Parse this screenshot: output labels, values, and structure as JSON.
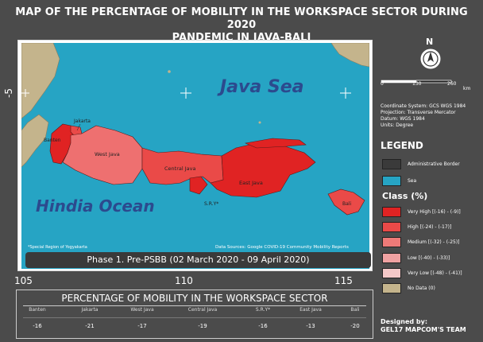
{
  "title_line1": "MAP OF THE PERCENTAGE OF MOBILITY IN THE WORKSPACE SECTOR DURING 2020",
  "title_line2": "PANDEMIC IN JAVA-BALI",
  "axis": {
    "lat_label": "-5",
    "lon_labels": [
      "105",
      "110",
      "115"
    ]
  },
  "map": {
    "sea_labels": [
      "Java Sea",
      "Hindia Ocean"
    ],
    "region_labels": [
      "Jakarta",
      "Banten",
      "West Java",
      "Central Java",
      "East Java",
      "S.R.Y*",
      "Bali"
    ],
    "footnote": "*Special Region of Yogyakarta",
    "source": "Data Sources: Google COVID-19 Community Mobility Reports",
    "colors": {
      "sea": "#26a4c4",
      "land_no_data": "#c4b48c",
      "very_high": "#e02323",
      "high": "#ea4a48",
      "medium": "#ee7070"
    }
  },
  "phase": "Phase 1. Pre-PSBB (02 March 2020 - 09 April 2020)",
  "north_label": "N",
  "scale": {
    "ticks": [
      "0",
      "130",
      "260"
    ],
    "unit": "km"
  },
  "coordinate_info": [
    "Coordinate System: GCS WGS 1984",
    "Projection: Transverse Mercator",
    "Datum: WGS 1984",
    "Units: Degree"
  ],
  "legend": {
    "title": "LEGEND",
    "base_items": [
      {
        "label": "Administrative Border",
        "color": "#3a3a3a"
      },
      {
        "label": "Sea",
        "color": "#26a4c4"
      }
    ],
    "class_title": "Class (%)",
    "class_items": [
      {
        "label": "Very High [(-16) - (-9)]",
        "color": "#e02323"
      },
      {
        "label": "High [(-24) - (-17)]",
        "color": "#ea4a48"
      },
      {
        "label": "Medium [(-32) - (-25)]",
        "color": "#ee7a78"
      },
      {
        "label": "Low [(-40) - (-33)]",
        "color": "#f0a2a2"
      },
      {
        "label": "Very Low [(-48) - (-41)]",
        "color": "#f4c8c8"
      },
      {
        "label": "No Data (0)",
        "color": "#c4b48c"
      }
    ]
  },
  "table": {
    "title": "PERCENTAGE OF MOBILITY IN THE WORKSPACE SECTOR",
    "headers": [
      "Banten",
      "Jakarta",
      "West Java",
      "Central Java",
      "S.R.Y*",
      "East Java",
      "Bali"
    ],
    "values": [
      "-16",
      "-21",
      "-17",
      "-19",
      "-16",
      "-13",
      "-20"
    ]
  },
  "credits": [
    "Designed by:",
    "GEL17 MAPCOM'S TEAM"
  ]
}
